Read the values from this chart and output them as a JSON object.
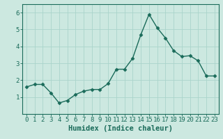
{
  "x": [
    0,
    1,
    2,
    3,
    4,
    5,
    6,
    7,
    8,
    9,
    10,
    11,
    12,
    13,
    14,
    15,
    16,
    17,
    18,
    19,
    20,
    21,
    22,
    23
  ],
  "y": [
    1.6,
    1.75,
    1.75,
    1.25,
    0.65,
    0.8,
    1.15,
    1.35,
    1.45,
    1.45,
    1.8,
    2.65,
    2.65,
    3.3,
    4.7,
    5.9,
    5.1,
    4.5,
    3.75,
    3.4,
    3.45,
    3.15,
    2.25,
    2.25
  ],
  "line_color": "#1a6b5a",
  "marker": "D",
  "marker_size": 2.5,
  "bg_color": "#cce8e0",
  "grid_color": "#aad4cb",
  "xlabel": "Humidex (Indice chaleur)",
  "xlabel_fontsize": 7.5,
  "xlim": [
    -0.5,
    23.5
  ],
  "ylim": [
    0,
    6.5
  ],
  "yticks": [
    1,
    2,
    3,
    4,
    5,
    6
  ],
  "xticks": [
    0,
    1,
    2,
    3,
    4,
    5,
    6,
    7,
    8,
    9,
    10,
    11,
    12,
    13,
    14,
    15,
    16,
    17,
    18,
    19,
    20,
    21,
    22,
    23
  ],
  "tick_fontsize": 6.5,
  "line_width": 1.0
}
